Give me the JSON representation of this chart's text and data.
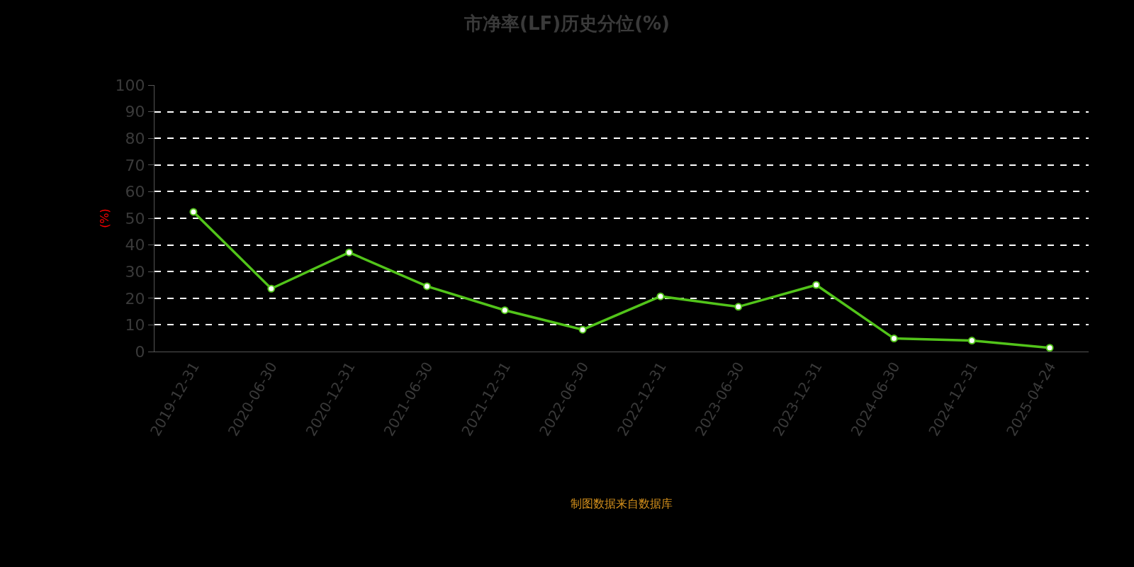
{
  "chart_data": {
    "type": "line",
    "title": "市净率(LF)历史分位(%)",
    "ylabel": "(%)",
    "categories": [
      "2019-12-31",
      "2020-06-30",
      "2020-12-31",
      "2021-06-30",
      "2021-12-31",
      "2022-06-30",
      "2022-12-31",
      "2023-06-30",
      "2023-12-31",
      "2024-06-30",
      "2024-12-31",
      "2025-04-24"
    ],
    "series": [
      {
        "color": "#52c41a",
        "values": [
          52.4,
          23.6,
          37.2,
          24.5,
          15.5,
          8.2,
          20.7,
          16.8,
          25.0,
          4.9,
          4.1,
          1.4
        ]
      }
    ],
    "ylim": [
      0,
      100
    ],
    "yticks": [
      0,
      10,
      20,
      30,
      40,
      50,
      60,
      70,
      80,
      90,
      100
    ],
    "grid": "y",
    "marker": "circle",
    "line_style": "solid",
    "annotations": [
      "制图数据来自数据库"
    ]
  }
}
